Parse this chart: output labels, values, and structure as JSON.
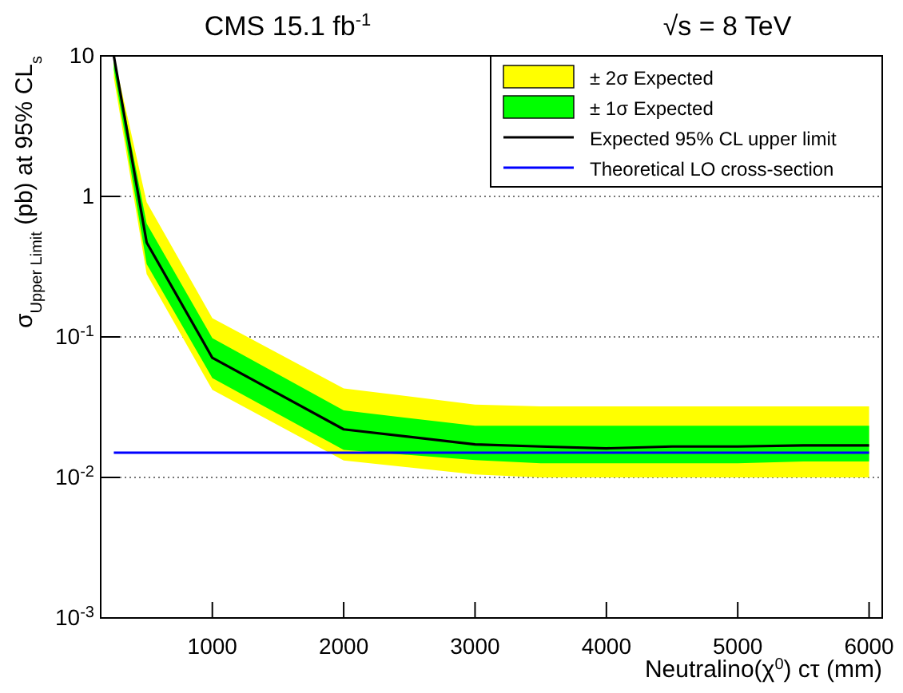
{
  "chart_data": {
    "type": "line",
    "title": "CMS 15.1 fb$^{-1}$",
    "subtitle": "√s = 8 TeV",
    "xlabel": "Neutralino(χ$^{0}$) cτ (mm)",
    "ylabel": "σ$_{Upper Limit}$ (pb) at 95% CL$_{s}$",
    "log": "y",
    "grid": "y",
    "legend": "top right",
    "line_style": "solid",
    "marker": "none",
    "xlim": [
      150,
      6100
    ],
    "xticks": [
      1000,
      2000,
      3000,
      4000,
      5000,
      6000
    ],
    "ylim": [
      0.001,
      10
    ],
    "yticks": [
      {
        "value": 0.001,
        "label": "10$^{-3}$"
      },
      {
        "value": 0.01,
        "label": "10$^{-2}$"
      },
      {
        "value": 0.1,
        "label": "10$^{-1}$"
      },
      1,
      10
    ],
    "series": [
      {
        "name": "± 2σ Expected",
        "type": "line",
        "color": "#ffff00",
        "x": [
          250,
          500,
          1000,
          2000,
          3000,
          3500,
          4000,
          4500,
          5000,
          5500,
          6000
        ],
        "values": [
          null,
          null,
          null,
          null,
          null,
          null,
          null,
          null,
          null,
          null,
          null
        ],
        "lower": [
          7,
          0.28,
          0.042,
          0.0132,
          0.0105,
          0.01,
          0.01,
          0.01,
          0.01,
          0.01,
          0.01
        ],
        "upper": [
          10,
          0.91,
          0.136,
          0.043,
          0.033,
          0.032,
          0.032,
          0.032,
          0.032,
          0.032,
          0.032
        ]
      },
      {
        "name": "± 1σ Expected",
        "type": "line",
        "color": "#00ff00",
        "x": [
          250,
          500,
          1000,
          2000,
          3000,
          3500,
          4000,
          4500,
          5000,
          5500,
          6000
        ],
        "values": [
          null,
          null,
          null,
          null,
          null,
          null,
          null,
          null,
          null,
          null,
          null
        ],
        "lower": [
          8,
          0.33,
          0.051,
          0.0157,
          0.0133,
          0.0126,
          0.0126,
          0.0126,
          0.0126,
          0.013,
          0.013
        ],
        "upper": [
          10,
          0.64,
          0.098,
          0.03,
          0.0233,
          0.0233,
          0.0233,
          0.0233,
          0.0233,
          0.0233,
          0.0233
        ]
      },
      {
        "name": "Expected 95% CL upper limit",
        "type": "line",
        "color": "#000000",
        "x": [
          250,
          500,
          1000,
          2000,
          3000,
          3500,
          4000,
          4500,
          5000,
          5500,
          6000
        ],
        "values": [
          10,
          0.47,
          0.071,
          0.022,
          0.0172,
          0.0166,
          0.0161,
          0.0166,
          0.0166,
          0.0169,
          0.0169
        ]
      },
      {
        "name": "Theoretical LO cross-section",
        "type": "line",
        "color": "#0000ff",
        "x": [
          250,
          6000
        ],
        "values": [
          0.015,
          0.015
        ]
      }
    ]
  }
}
